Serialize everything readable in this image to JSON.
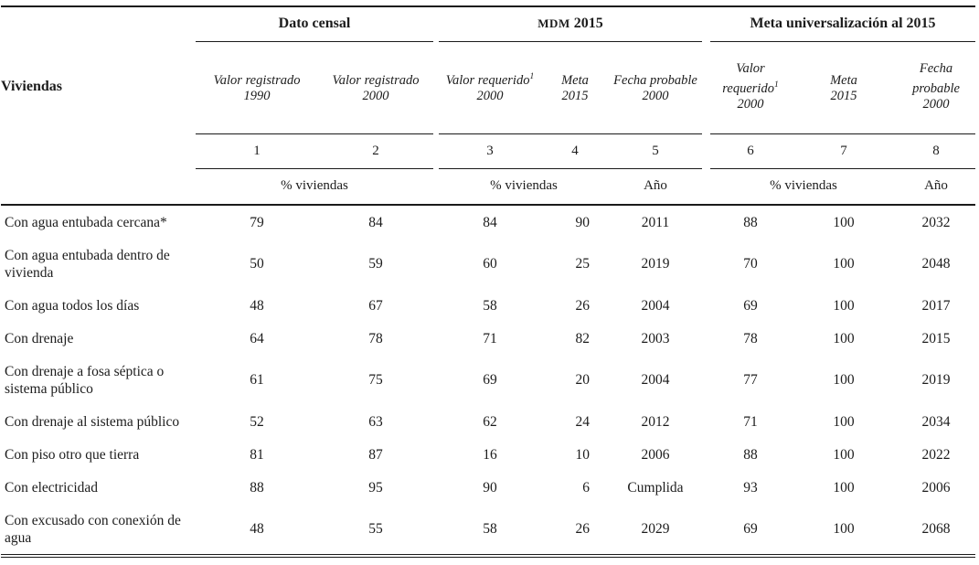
{
  "table": {
    "row_header": "Viviendas",
    "groups": [
      {
        "label": "Dato censal"
      },
      {
        "label_smallcaps": "MDM",
        "label_after": "2015"
      },
      {
        "label": "Meta universalización al 2015"
      }
    ],
    "col_headers": [
      {
        "line1": "Valor registrado",
        "sup": "",
        "line2": "1990"
      },
      {
        "line1": "Valor registrado",
        "sup": "",
        "line2": "2000"
      },
      {
        "line1": "Valor requerido",
        "sup": "1",
        "line2": "2000"
      },
      {
        "line1": "Meta",
        "sup": "",
        "line2": "2015"
      },
      {
        "line1": "Fecha probable",
        "sup": "",
        "line2": "2000"
      },
      {
        "line1": "Valor requerido",
        "sup": "1",
        "line2": "2000"
      },
      {
        "line1": "Meta",
        "sup": "",
        "line2": "2015"
      },
      {
        "line1": "Fecha probable",
        "sup": "",
        "line2": "2000"
      }
    ],
    "col_numbers": [
      "1",
      "2",
      "3",
      "4",
      "5",
      "6",
      "7",
      "8"
    ],
    "units": {
      "group1_pct": "% viviendas",
      "group2_pct": "% viviendas",
      "group2_year": "Año",
      "group3_pct": "% viviendas",
      "group3_year": "Año"
    },
    "rows": [
      {
        "label": "Con agua entubada cercana*",
        "values": [
          "79",
          "84",
          "84",
          "90",
          "2011",
          "88",
          "100",
          "2032"
        ]
      },
      {
        "label": "Con agua entubada dentro de vivienda",
        "values": [
          "50",
          "59",
          "60",
          "25",
          "2019",
          "70",
          "100",
          "2048"
        ]
      },
      {
        "label": "Con agua todos los días",
        "values": [
          "48",
          "67",
          "58",
          "26",
          "2004",
          "69",
          "100",
          "2017"
        ]
      },
      {
        "label": "Con drenaje",
        "values": [
          "64",
          "78",
          "71",
          "82",
          "2003",
          "78",
          "100",
          "2015"
        ]
      },
      {
        "label": "Con drenaje a fosa séptica o sistema público",
        "values": [
          "61",
          "75",
          "69",
          "20",
          "2004",
          "77",
          "100",
          "2019"
        ]
      },
      {
        "label": "Con drenaje al sistema público",
        "values": [
          "52",
          "63",
          "62",
          "24",
          "2012",
          "71",
          "100",
          "2034"
        ]
      },
      {
        "label": "Con piso otro que tierra",
        "values": [
          "81",
          "87",
          "16",
          "10",
          "2006",
          "88",
          "100",
          "2022"
        ]
      },
      {
        "label": "Con electricidad",
        "values": [
          "88",
          "95",
          "90",
          "6",
          "Cumplida",
          "93",
          "100",
          "2006"
        ]
      },
      {
        "label": "Con excusado con conexión de agua",
        "values": [
          "48",
          "55",
          "58",
          "26",
          "2029",
          "69",
          "100",
          "2068"
        ]
      }
    ]
  },
  "colors": {
    "text": "#1c1c1c",
    "rule": "#1a1a1a",
    "background": "#ffffff"
  }
}
